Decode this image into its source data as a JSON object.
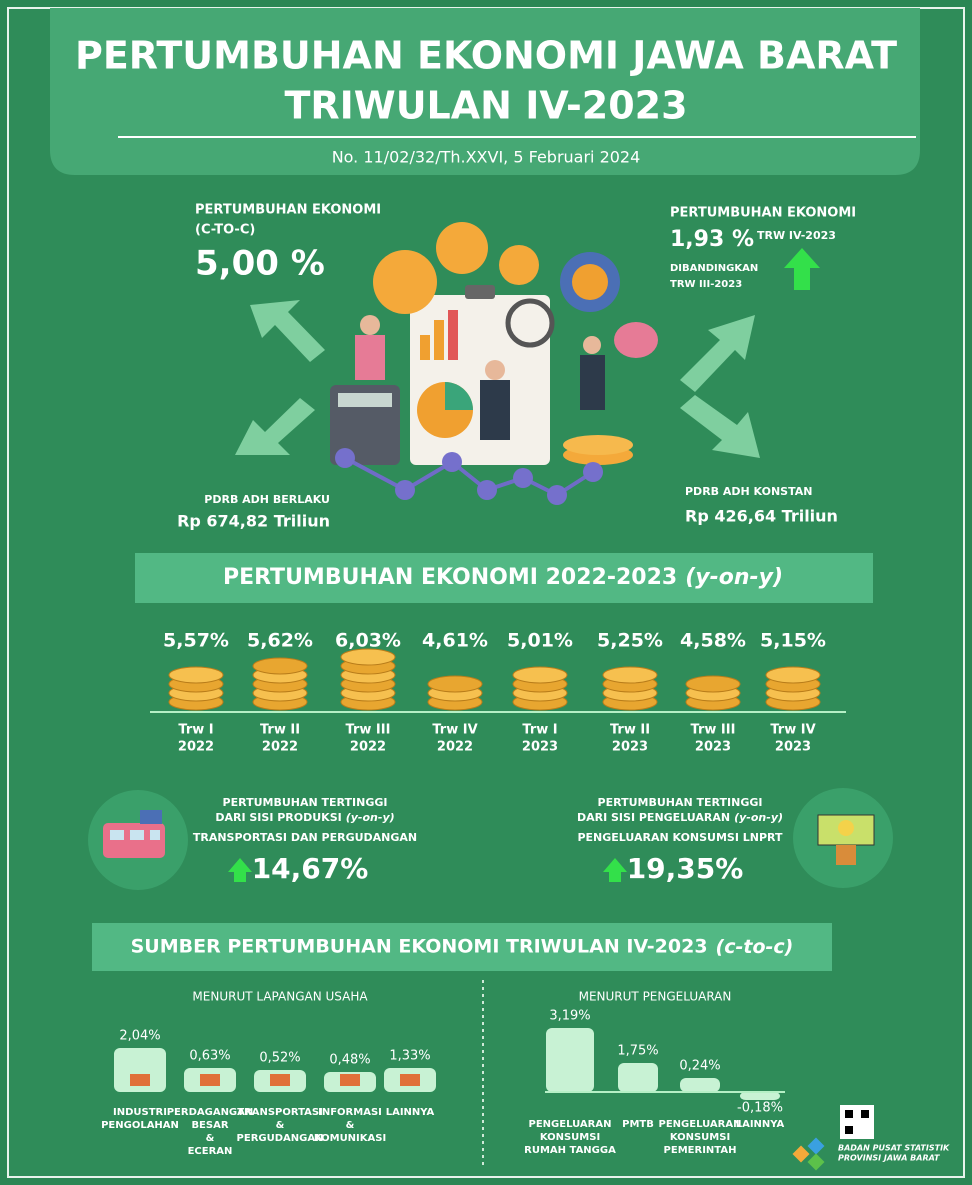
{
  "header": {
    "title_line1": "PERTUMBUHAN EKONOMI JAWA BARAT",
    "title_line2": "TRIWULAN IV-2023",
    "subtitle": "No. 11/02/32/Th.XXVI, 5 Februari 2024"
  },
  "ctoc": {
    "label_lines": [
      "PERTUMBUHAN EKONOMI",
      "(C-TO-C)"
    ],
    "value": "5,00 %"
  },
  "qtq": {
    "label": "PERTUMBUHAN EKONOMI",
    "value": "1,93 %",
    "period": "TRW IV-2023",
    "note_lines": [
      "DIBANDINGKAN",
      "TRW III-2023"
    ]
  },
  "adhb": {
    "label": "PDRB ADH BERLAKU",
    "value": "Rp 674,82 Triliun"
  },
  "adhk": {
    "label": "PDRB ADH KONSTAN",
    "value": "Rp 426,64 Triliun"
  },
  "yoy": {
    "title": "PERTUMBUHAN EKONOMI 2022-2023",
    "title_em": "(y-on-y)",
    "items": [
      {
        "value": "5,57%",
        "quarter": "Trw I",
        "year": "2022"
      },
      {
        "value": "5,62%",
        "quarter": "Trw II",
        "year": "2022"
      },
      {
        "value": "6,03%",
        "quarter": "Trw III",
        "year": "2022"
      },
      {
        "value": "4,61%",
        "quarter": "Trw IV",
        "year": "2022"
      },
      {
        "value": "5,01%",
        "quarter": "Trw I",
        "year": "2023"
      },
      {
        "value": "5,25%",
        "quarter": "Trw II",
        "year": "2023"
      },
      {
        "value": "4,58%",
        "quarter": "Trw III",
        "year": "2023"
      },
      {
        "value": "5,15%",
        "quarter": "Trw IV",
        "year": "2023"
      }
    ]
  },
  "highlights": {
    "production": {
      "line1": "PERTUMBUHAN TERTINGGI",
      "line2": "DARI SISI PRODUKSI",
      "em": "(y-on-y)",
      "sector": "TRANSPORTASI DAN PERGUDANGAN",
      "value": "14,67%"
    },
    "expenditure": {
      "line1": "PERTUMBUHAN TERTINGGI",
      "line2": "DARI SISI PENGELUARAN",
      "em": "(y-on-y)",
      "sector": "PENGELUARAN KONSUMSI LNPRT",
      "value": "19,35%"
    }
  },
  "sources": {
    "title": "SUMBER PERTUMBUHAN EKONOMI TRIWULAN IV-2023",
    "title_em": "(c-to-c)",
    "business": {
      "heading": "MENURUT LAPANGAN USAHA",
      "items": [
        {
          "value": "2,04%",
          "label_lines": [
            "INDUSTRI",
            "PENGOLAHAN"
          ]
        },
        {
          "value": "0,63%",
          "label_lines": [
            "PERDAGANGAN",
            "BESAR",
            "&",
            "ECERAN"
          ]
        },
        {
          "value": "0,52%",
          "label_lines": [
            "TRANSPORTASI",
            "&",
            "PERGUDANGAN"
          ]
        },
        {
          "value": "0,48%",
          "label_lines": [
            "INFORMASI",
            "&",
            "KOMUNIKASI"
          ]
        },
        {
          "value": "1,33%",
          "label_lines": [
            "LAINNYA"
          ]
        }
      ]
    },
    "expenditure": {
      "heading": "MENURUT PENGELUARAN",
      "items": [
        {
          "value": "3,19%",
          "label_lines": [
            "PENGELUARAN",
            "KONSUMSI",
            "RUMAH TANGGA"
          ]
        },
        {
          "value": "1,75%",
          "label_lines": [
            "PMTB"
          ]
        },
        {
          "value": "0,24%",
          "label_lines": [
            "PENGELUARAN",
            "KONSUMSI",
            "PEMERINTAH"
          ]
        },
        {
          "value": "-0,18%",
          "label_lines": [
            "LAINNYA"
          ]
        }
      ]
    }
  },
  "footer": {
    "org_lines": [
      "BADAN PUSAT STATISTIK",
      "PROVINSI JAWA BARAT"
    ]
  }
}
